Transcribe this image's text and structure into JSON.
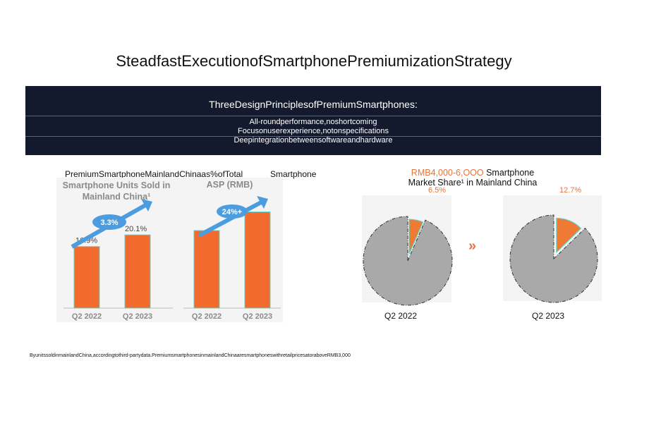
{
  "title": "SteadfastExecutionofSmartphonePremiumizationStrategy",
  "banner": {
    "heading": "ThreeDesignPrinciplesofPremiumSmartphones:",
    "principles": [
      "All-roundperformance,noshortcoming",
      "Focusonuserexperience,notonspecifications",
      "Deepintegrationbetweensoftwareandhardware"
    ]
  },
  "left_heading": "PremiumSmartphoneMainlandChinaas%ofTotal",
  "left_heading_2": "Smartphone",
  "right_heading_orange": "RMB4,000-6,OOO",
  "right_heading_black": " Smartphone",
  "right_heading_line2": "Market Share¹ in Mainland China",
  "arrow_glyph": "»",
  "footnote": "ByunitssoldinmainlandChina,accordingtothird-partydata.PremiumsmartphonesinmainlandChinaaresmartphoneswithretailpricesatoraboveRMB3,000",
  "colors": {
    "bar": "#f26a2e",
    "pie_gray": "#a9a9a9",
    "pie_orange": "#ee7a33",
    "banner": "#141a2e",
    "arrow_blue": "#4c9de0"
  },
  "chart_data": [
    {
      "type": "bar",
      "title": "Smartphone Units Sold in Mainland China¹",
      "categories": [
        "Q2 2022",
        "Q2 2023"
      ],
      "values": [
        16.9,
        20.1
      ],
      "value_labels": [
        "16.9%",
        "20.1%"
      ],
      "annotation": "3.3%",
      "ylim": [
        0,
        24
      ]
    },
    {
      "type": "bar",
      "title": "ASP (RMB)",
      "categories": [
        "Q2 2022",
        "Q2 2023"
      ],
      "values": [
        100,
        124
      ],
      "annotation": "24%+",
      "ylim": [
        0,
        150
      ]
    },
    {
      "type": "pie",
      "caption": "Q2 2022",
      "slices": [
        {
          "label": "6.5%",
          "value": 6.5
        },
        {
          "value": 93.5
        }
      ]
    },
    {
      "type": "pie",
      "caption": "Q2 2023",
      "slices": [
        {
          "label": "12.7%",
          "value": 12.7
        },
        {
          "value": 87.3
        }
      ]
    }
  ]
}
